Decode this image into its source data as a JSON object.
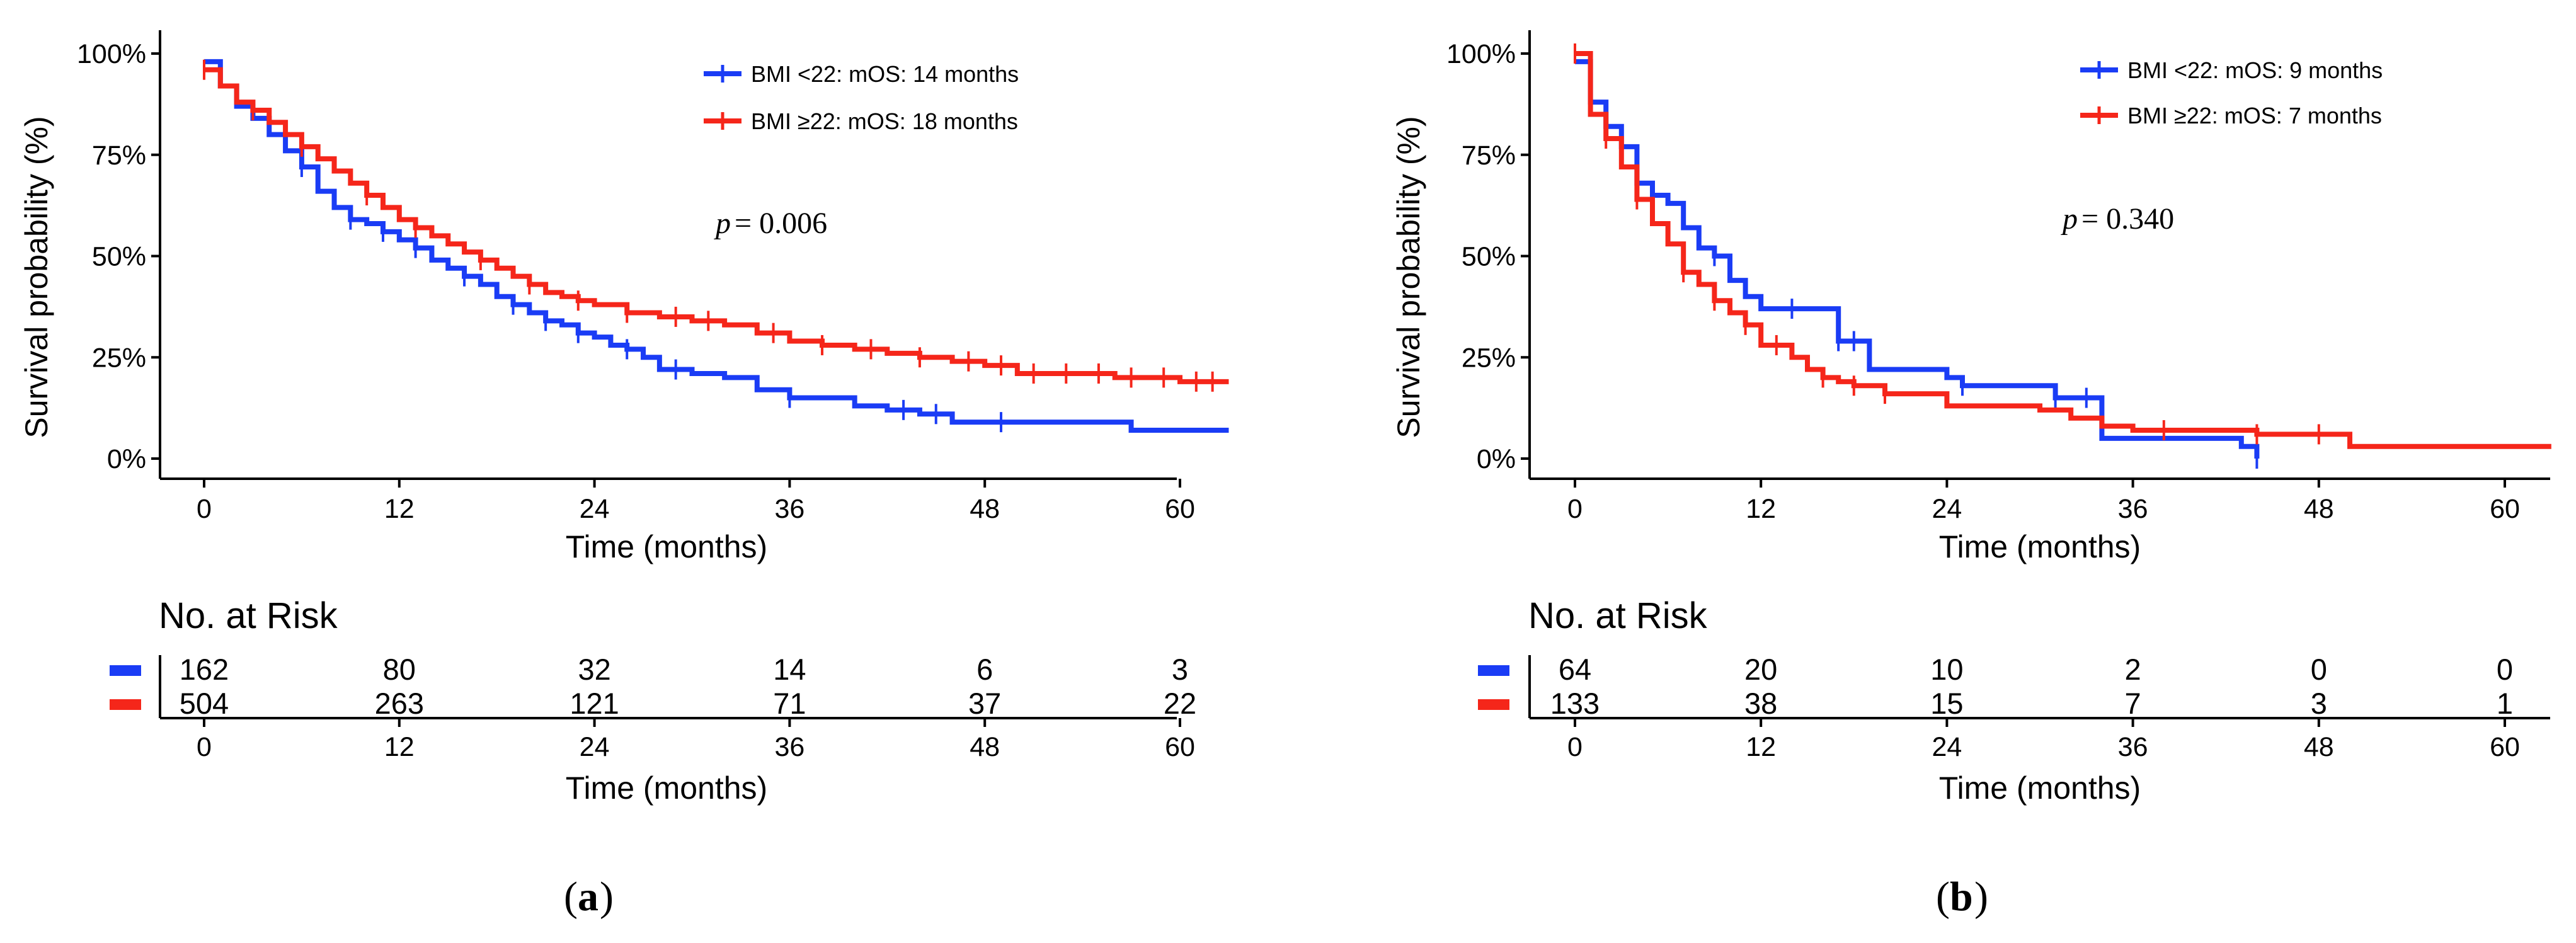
{
  "colors": {
    "bmi_low": "#1a3cf5",
    "bmi_high": "#f5261a",
    "axis": "#000000"
  },
  "panels": [
    {
      "id": "a",
      "label": "a",
      "ylabel": "Survival probability (%)",
      "xlabel": "Time (months)",
      "risk_title": "No. at Risk",
      "risk_xlabel": "Time (months)",
      "p_prefix": "p",
      "p_value": "= 0.006",
      "legend": [
        "BMI <22: mOS: 14 months",
        "BMI ≥22: mOS: 18 months"
      ],
      "y_ticks": [
        "0%",
        "25%",
        "50%",
        "75%",
        "100%"
      ],
      "x_ticks": [
        "0",
        "12",
        "24",
        "36",
        "48",
        "60"
      ],
      "risk_low": [
        "162",
        "80",
        "32",
        "14",
        "6",
        "3"
      ],
      "risk_high": [
        "504",
        "263",
        "121",
        "71",
        "37",
        "22"
      ]
    },
    {
      "id": "b",
      "label": "b",
      "ylabel": "Survival probability (%)",
      "xlabel": "Time (months)",
      "risk_title": "No. at Risk",
      "risk_xlabel": "Time (months)",
      "p_prefix": "p",
      "p_value": "= 0.340",
      "legend": [
        "BMI <22: mOS: 9 months",
        "BMI ≥22: mOS: 7 months"
      ],
      "y_ticks": [
        "0%",
        "25%",
        "50%",
        "75%",
        "100%"
      ],
      "x_ticks": [
        "0",
        "12",
        "24",
        "36",
        "48",
        "60"
      ],
      "risk_low": [
        "64",
        "20",
        "10",
        "2",
        "0",
        "0"
      ],
      "risk_high": [
        "133",
        "38",
        "15",
        "7",
        "3",
        "1"
      ]
    }
  ],
  "chart_data": [
    {
      "type": "line",
      "subtype": "kaplan-meier-step",
      "title": "(a)",
      "xlabel": "Time (months)",
      "ylabel": "Survival probability (%)",
      "xlim": [
        -5,
        63
      ],
      "ylim": [
        0,
        100
      ],
      "x_ticks": [
        0,
        12,
        24,
        36,
        48,
        60
      ],
      "y_ticks": [
        0,
        25,
        50,
        75,
        100
      ],
      "annotation": "p = 0.006",
      "series": [
        {
          "name": "BMI <22: mOS: 14 months",
          "color": "#1a3cf5",
          "x": [
            0,
            1,
            2,
            3,
            4,
            5,
            6,
            7,
            8,
            9,
            10,
            11,
            12,
            13,
            14,
            15,
            16,
            17,
            18,
            19,
            20,
            21,
            22,
            23,
            24,
            25,
            26,
            27,
            28,
            30,
            32,
            34,
            36,
            40,
            42,
            44,
            46,
            48,
            52,
            54,
            57,
            63
          ],
          "y": [
            98,
            92,
            87,
            84,
            80,
            76,
            72,
            66,
            62,
            59,
            58,
            56,
            54,
            52,
            49,
            47,
            45,
            43,
            40,
            38,
            36,
            34,
            33,
            31,
            30,
            28,
            27,
            25,
            22,
            21,
            20,
            17,
            15,
            13,
            12,
            11,
            9,
            9,
            9,
            9,
            7,
            7
          ],
          "censored_x": [
            6,
            9,
            11,
            13,
            16,
            19,
            21,
            23,
            26,
            29,
            36,
            43,
            45,
            49
          ]
        },
        {
          "name": "BMI ≥22: mOS: 18 months",
          "color": "#f5261a",
          "x": [
            0,
            1,
            2,
            3,
            4,
            5,
            6,
            7,
            8,
            9,
            10,
            11,
            12,
            13,
            14,
            15,
            16,
            17,
            18,
            19,
            20,
            21,
            22,
            23,
            24,
            26,
            28,
            30,
            32,
            34,
            36,
            38,
            40,
            42,
            44,
            46,
            48,
            50,
            52,
            54,
            56,
            58,
            60,
            63
          ],
          "y": [
            96,
            92,
            88,
            86,
            83,
            80,
            77,
            74,
            71,
            68,
            65,
            62,
            59,
            57,
            55,
            53,
            51,
            49,
            47,
            45,
            43,
            41,
            40,
            39,
            38,
            36,
            35,
            34,
            33,
            31,
            29,
            28,
            27,
            26,
            25,
            24,
            23,
            21,
            21,
            21,
            20,
            20,
            19,
            19
          ],
          "censored_x": [
            0,
            3,
            6,
            10,
            13,
            17,
            20,
            23,
            26,
            29,
            31,
            35,
            38,
            41,
            44,
            47,
            49,
            51,
            53,
            55,
            57,
            59,
            61,
            62
          ]
        }
      ],
      "risk_table": {
        "times": [
          0,
          12,
          24,
          36,
          48,
          60
        ],
        "BMI <22": [
          162,
          80,
          32,
          14,
          6,
          3
        ],
        "BMI ≥22": [
          504,
          263,
          121,
          71,
          37,
          22
        ]
      }
    },
    {
      "type": "line",
      "subtype": "kaplan-meier-step",
      "title": "(b)",
      "xlabel": "Time (months)",
      "ylabel": "Survival probability (%)",
      "xlim": [
        -5,
        63
      ],
      "ylim": [
        0,
        100
      ],
      "x_ticks": [
        0,
        12,
        24,
        36,
        48,
        60
      ],
      "y_ticks": [
        0,
        25,
        50,
        75,
        100
      ],
      "annotation": "p = 0.340",
      "series": [
        {
          "name": "BMI <22: mOS: 9 months",
          "color": "#1a3cf5",
          "x": [
            0,
            1,
            2,
            3,
            4,
            5,
            6,
            7,
            8,
            9,
            10,
            11,
            12,
            14,
            17,
            19,
            24,
            25,
            31,
            34,
            43,
            44
          ],
          "y": [
            98,
            88,
            82,
            77,
            68,
            65,
            63,
            57,
            52,
            50,
            44,
            40,
            37,
            37,
            29,
            22,
            20,
            18,
            15,
            5,
            3,
            0
          ],
          "censored_x": [
            1,
            5,
            9,
            14,
            17,
            18,
            25,
            31,
            33,
            44
          ]
        },
        {
          "name": "BMI ≥22: mOS: 7 months",
          "color": "#f5261a",
          "x": [
            0,
            1,
            2,
            3,
            4,
            5,
            6,
            7,
            8,
            9,
            10,
            11,
            12,
            14,
            15,
            16,
            17,
            18,
            20,
            24,
            30,
            32,
            34,
            36,
            42,
            44,
            50,
            63
          ],
          "y": [
            100,
            85,
            79,
            72,
            64,
            58,
            53,
            46,
            43,
            39,
            36,
            33,
            28,
            25,
            22,
            20,
            19,
            18,
            16,
            13,
            12,
            10,
            8,
            7,
            7,
            6,
            3,
            3
          ],
          "censored_x": [
            0,
            2,
            4,
            7,
            9,
            11,
            13,
            16,
            18,
            20,
            38,
            44,
            48
          ]
        }
      ],
      "risk_table": {
        "times": [
          0,
          12,
          24,
          36,
          48,
          60
        ],
        "BMI <22": [
          64,
          20,
          10,
          2,
          0,
          0
        ],
        "BMI ≥22": [
          133,
          38,
          15,
          7,
          3,
          1
        ]
      }
    }
  ]
}
